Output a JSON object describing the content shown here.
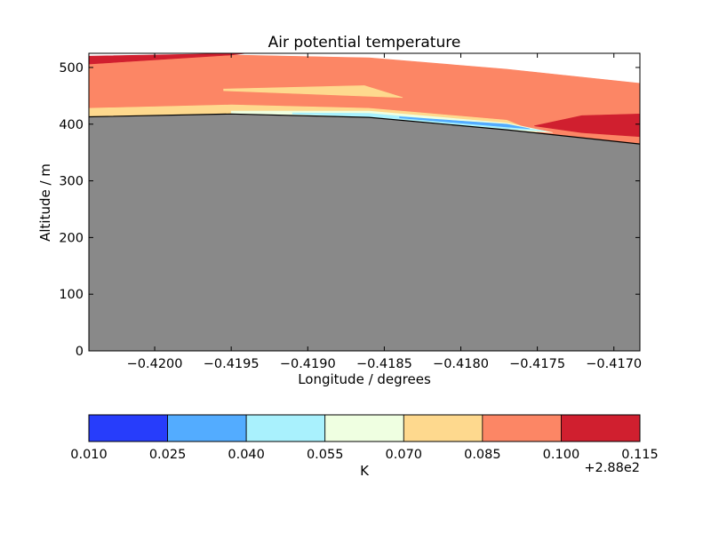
{
  "chart_data": {
    "type": "contour",
    "title": "Air potential temperature",
    "xlabel": "Longitude / degrees",
    "ylabel": "Altitude / m",
    "xlim": [
      -0.42043,
      -0.41683
    ],
    "ylim": [
      0,
      525
    ],
    "x_ticks": [
      -0.42,
      -0.4195,
      -0.419,
      -0.4185,
      -0.418,
      -0.4175,
      -0.417
    ],
    "x_tick_labels": [
      "−0.4200",
      "−0.4195",
      "−0.4190",
      "−0.4185",
      "−0.4180",
      "−0.4175",
      "−0.4170"
    ],
    "y_ticks": [
      0,
      100,
      200,
      300,
      400,
      500
    ],
    "y_tick_labels": [
      "0",
      "100",
      "200",
      "300",
      "400",
      "500"
    ],
    "terrain": {
      "color": "#898989",
      "x": [
        -0.42043,
        -0.4195,
        -0.4186,
        -0.4177,
        -0.41683
      ],
      "y": [
        413,
        418,
        412,
        390,
        365
      ]
    },
    "filled_regions": [
      {
        "level": 0.085,
        "color": "#fc8665",
        "x": [
          -0.42043,
          -0.4195,
          -0.4186,
          -0.4177,
          -0.41683,
          -0.41683,
          -0.4177,
          -0.4186,
          -0.4195,
          -0.42043
        ],
        "y": [
          413,
          418,
          412,
          390,
          365,
          472,
          497,
          517,
          522,
          506
        ]
      },
      {
        "level": 0.1,
        "color": "#d01f2f",
        "x": [
          -0.42043,
          -0.4195,
          -0.4194,
          -0.42043
        ],
        "y": [
          506,
          522,
          525,
          520
        ]
      },
      {
        "level": 0.1,
        "color": "#d01f2f",
        "x": [
          -0.41683,
          -0.41721,
          -0.41752,
          -0.41721,
          -0.41683
        ],
        "y": [
          418,
          415,
          397,
          385,
          378
        ]
      },
      {
        "level": 0.07,
        "color": "#fed98e",
        "x": [
          -0.41955,
          -0.41863,
          -0.41838,
          -0.41955
        ],
        "y": [
          462,
          468,
          447,
          459
        ]
      },
      {
        "level": 0.07,
        "color": "#fed98e",
        "x": [
          -0.42043,
          -0.4195,
          -0.4186,
          -0.4177,
          -0.4175,
          -0.4177,
          -0.4186,
          -0.4195,
          -0.42043
        ],
        "y": [
          413,
          418,
          412,
          390,
          385,
          407,
          428,
          434,
          428
        ]
      },
      {
        "level": 0.055,
        "color": "#efffe1",
        "x": [
          -0.4195,
          -0.4186,
          -0.4177,
          -0.4174,
          -0.4177,
          -0.4186,
          -0.4195
        ],
        "y": [
          418,
          412,
          390,
          385,
          402,
          423,
          423
        ]
      },
      {
        "level": 0.04,
        "color": "#a9f1fd",
        "x": [
          -0.4191,
          -0.4186,
          -0.4177,
          -0.41745,
          -0.4177,
          -0.4186,
          -0.4191
        ],
        "y": [
          418,
          413,
          392,
          388,
          397,
          419,
          420
        ]
      },
      {
        "level": 0.025,
        "color": "#53acff",
        "x": [
          -0.4184,
          -0.4177,
          -0.41755,
          -0.4177,
          -0.4184
        ],
        "y": [
          411,
          395,
          392,
          400,
          413
        ]
      }
    ],
    "colorbar": {
      "label": "K",
      "offset_label": "+2.88e2",
      "levels": [
        0.01,
        0.025,
        0.04,
        0.055,
        0.07,
        0.085,
        0.1,
        0.115
      ],
      "level_labels": [
        "0.010",
        "0.025",
        "0.040",
        "0.055",
        "0.070",
        "0.085",
        "0.100",
        "0.115"
      ],
      "colors": [
        "#273dfb",
        "#53acff",
        "#a9f1fd",
        "#efffe1",
        "#fed98e",
        "#fc8665",
        "#d01f2f"
      ]
    }
  }
}
